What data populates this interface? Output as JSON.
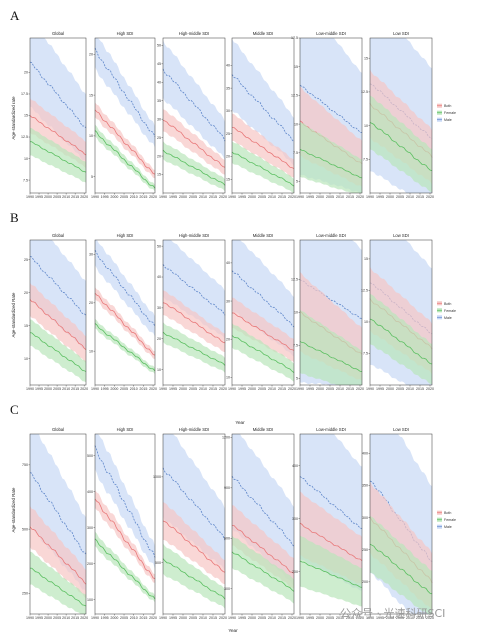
{
  "figure": {
    "panels": [
      {
        "letter": "A",
        "ylabel": "Age-standardized rate",
        "xlabel": ""
      },
      {
        "letter": "B",
        "ylabel": "Age-standardized Rate",
        "xlabel": "Year"
      },
      {
        "letter": "C",
        "ylabel": "Age-standardized Rate",
        "xlabel": "Year"
      }
    ],
    "watermark": "公众号 · 光速科研SCI"
  },
  "colors": {
    "both_line": "#e8797a",
    "both_band": "#f6c6c4",
    "female_line": "#5bbf61",
    "female_band": "#b9e5bb",
    "male_line": "#5e86c9",
    "male_band": "#c8d8f5",
    "frame": "#333333"
  },
  "chart_data": [
    {
      "type": "line",
      "panel": "A",
      "facets": [
        {
          "title": "Global",
          "ylim": [
            6,
            24
          ],
          "yticks": [
            7.5,
            10,
            12.5,
            15,
            17.5,
            20
          ],
          "both": [
            15,
            10.5
          ],
          "female": [
            12,
            8.4
          ],
          "male": [
            21.2,
            13.5
          ],
          "band": [
            2,
            1.5
          ]
        },
        {
          "title": "High SDI",
          "ylim": [
            3,
            22
          ],
          "yticks": [
            5,
            10,
            15,
            20
          ],
          "both": [
            13.2,
            5.2
          ],
          "female": [
            10.5,
            3.5
          ],
          "male": [
            20.5,
            9.8
          ],
          "band": [
            0.9,
            0.5
          ]
        },
        {
          "title": "High-middle SDI",
          "ylim": [
            10,
            52
          ],
          "yticks": [
            15,
            20,
            25,
            30,
            35,
            40,
            45,
            50
          ],
          "both": [
            30,
            16.8
          ],
          "female": [
            21.5,
            12.2
          ],
          "male": [
            43.5,
            24.5
          ],
          "band": [
            3,
            2
          ]
        },
        {
          "title": "Middle SDI",
          "ylim": [
            12,
            46
          ],
          "yticks": [
            15,
            20,
            25,
            30,
            35,
            40
          ],
          "both": [
            26.5,
            17.3
          ],
          "female": [
            21,
            13.7
          ],
          "male": [
            38,
            23.5
          ],
          "band": [
            3,
            2
          ]
        },
        {
          "title": "Low-middle SDI",
          "ylim": [
            4,
            17.5
          ],
          "yticks": [
            5.0,
            7.5,
            10.0,
            12.5,
            15.0,
            17.5
          ],
          "both": [
            10.2,
            6.5
          ],
          "female": [
            7.8,
            5.3
          ],
          "male": [
            13.4,
            9.2
          ],
          "band": [
            3,
            2
          ]
        },
        {
          "title": "Low SDI",
          "ylim": [
            5,
            16.5
          ],
          "yticks": [
            7.5,
            10.0,
            12.5,
            15.0
          ],
          "both": [
            11.6,
            7.7
          ],
          "female": [
            10.3,
            6.6
          ],
          "male": [
            13.2,
            9.0
          ],
          "band": [
            2.5,
            2
          ]
        }
      ],
      "x": [
        1990,
        2021
      ],
      "xticks": [
        1990,
        1995,
        2000,
        2005,
        2010,
        2015,
        2020
      ],
      "legend": [
        "Both",
        "Female",
        "Male"
      ]
    },
    {
      "type": "line",
      "panel": "B",
      "facets": [
        {
          "title": "Global",
          "ylim": [
            6,
            28
          ],
          "yticks": [
            10,
            15,
            20,
            25
          ],
          "both": [
            19,
            11.5
          ],
          "female": [
            14,
            8
          ],
          "male": [
            25.5,
            16.5
          ],
          "band": [
            2.5,
            2
          ]
        },
        {
          "title": "High SDI",
          "ylim": [
            3,
            33
          ],
          "yticks": [
            10,
            20,
            30
          ],
          "both": [
            22,
            9
          ],
          "female": [
            15.5,
            5.8
          ],
          "male": [
            30.5,
            15
          ],
          "band": [
            1.2,
            0.8
          ]
        },
        {
          "title": "High-middle SDI",
          "ylim": [
            5,
            52
          ],
          "yticks": [
            10,
            20,
            30,
            40,
            50
          ],
          "both": [
            32,
            18.5
          ],
          "female": [
            22,
            11.5
          ],
          "male": [
            44,
            28
          ],
          "band": [
            4,
            3
          ]
        },
        {
          "title": "Middle SDI",
          "ylim": [
            8,
            46
          ],
          "yticks": [
            10,
            20,
            30,
            40
          ],
          "both": [
            27,
            17
          ],
          "female": [
            21,
            11.5
          ],
          "male": [
            38,
            23.5
          ],
          "band": [
            4,
            3
          ]
        },
        {
          "title": "Low-middle SDI",
          "ylim": [
            4.5,
            15.5
          ],
          "yticks": [
            5.0,
            7.5,
            10.0,
            12.5
          ],
          "both": [
            10,
            6.8
          ],
          "female": [
            7.8,
            5.5
          ],
          "male": [
            12.5,
            9.5
          ],
          "band": [
            3,
            2
          ]
        },
        {
          "title": "Low SDI",
          "ylim": [
            5,
            16.5
          ],
          "yticks": [
            7.5,
            10.0,
            12.5,
            15.0
          ],
          "both": [
            11.8,
            7.9
          ],
          "female": [
            10.3,
            6.6
          ],
          "male": [
            13.2,
            9.0
          ],
          "band": [
            2.5,
            2
          ]
        }
      ],
      "x": [
        1990,
        2021
      ],
      "xticks": [
        1990,
        1995,
        2000,
        2005,
        2010,
        2015,
        2020
      ],
      "legend": [
        "Both",
        "Female",
        "Male"
      ]
    },
    {
      "type": "line",
      "panel": "C",
      "facets": [
        {
          "title": "Global",
          "ylim": [
            170,
            870
          ],
          "yticks": [
            250,
            500,
            750
          ],
          "both": [
            510,
            290
          ],
          "female": [
            350,
            200
          ],
          "male": [
            720,
            400
          ],
          "band": [
            80,
            55
          ]
        },
        {
          "title": "High SDI",
          "ylim": [
            60,
            560
          ],
          "yticks": [
            100,
            200,
            300,
            400,
            500
          ],
          "both": [
            380,
            155
          ],
          "female": [
            265,
            100
          ],
          "male": [
            520,
            215
          ],
          "band": [
            25,
            12
          ]
        },
        {
          "title": "High-middle SDI",
          "ylim": [
            200,
            1250
          ],
          "yticks": [
            500,
            1000
          ],
          "both": [
            750,
            440
          ],
          "female": [
            520,
            290
          ],
          "male": [
            1050,
            640
          ],
          "band": [
            110,
            70
          ]
        },
        {
          "title": "Middle SDI",
          "ylim": [
            150,
            1220
          ],
          "yticks": [
            300,
            600,
            900,
            1200
          ],
          "both": [
            680,
            390
          ],
          "female": [
            520,
            290
          ],
          "male": [
            970,
            560
          ],
          "band": [
            120,
            90
          ]
        },
        {
          "title": "Low-middle SDI",
          "ylim": [
            120,
            460
          ],
          "yticks": [
            200,
            300,
            400
          ],
          "both": [
            290,
            220
          ],
          "female": [
            220,
            170
          ],
          "male": [
            380,
            280
          ],
          "band": [
            60,
            45
          ]
        },
        {
          "title": "Low SDI",
          "ylim": [
            150,
            430
          ],
          "yticks": [
            200,
            250,
            300,
            350,
            400
          ],
          "both": [
            300,
            200
          ],
          "female": [
            260,
            180
          ],
          "male": [
            360,
            230
          ],
          "band": [
            55,
            45
          ]
        }
      ],
      "x": [
        1990,
        2021
      ],
      "xticks": [
        1990,
        1995,
        2000,
        2005,
        2010,
        2015,
        2020
      ],
      "legend": [
        "Both",
        "Female",
        "Male"
      ]
    }
  ]
}
